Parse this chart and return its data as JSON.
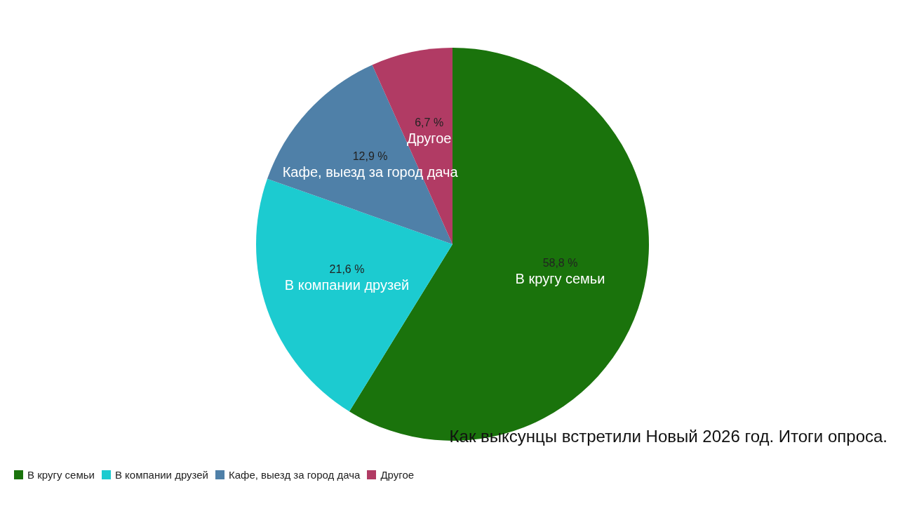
{
  "chart_data": {
    "type": "pie",
    "title": "Как выксунцы встретили Новый 2026 год. Итоги опроса.",
    "categories": [
      "В кругу семьи",
      "В компании друзей",
      "Кафе, выезд за город дача",
      "Другое"
    ],
    "values": [
      58.8,
      21.6,
      12.9,
      6.7
    ],
    "colors": [
      "#1a730c",
      "#1ccbd0",
      "#4f80a8",
      "#b13b64"
    ],
    "value_labels": [
      "58,8 %",
      "21,6 %",
      "12,9 %",
      "6,7 %"
    ],
    "legend": "bottom left"
  }
}
